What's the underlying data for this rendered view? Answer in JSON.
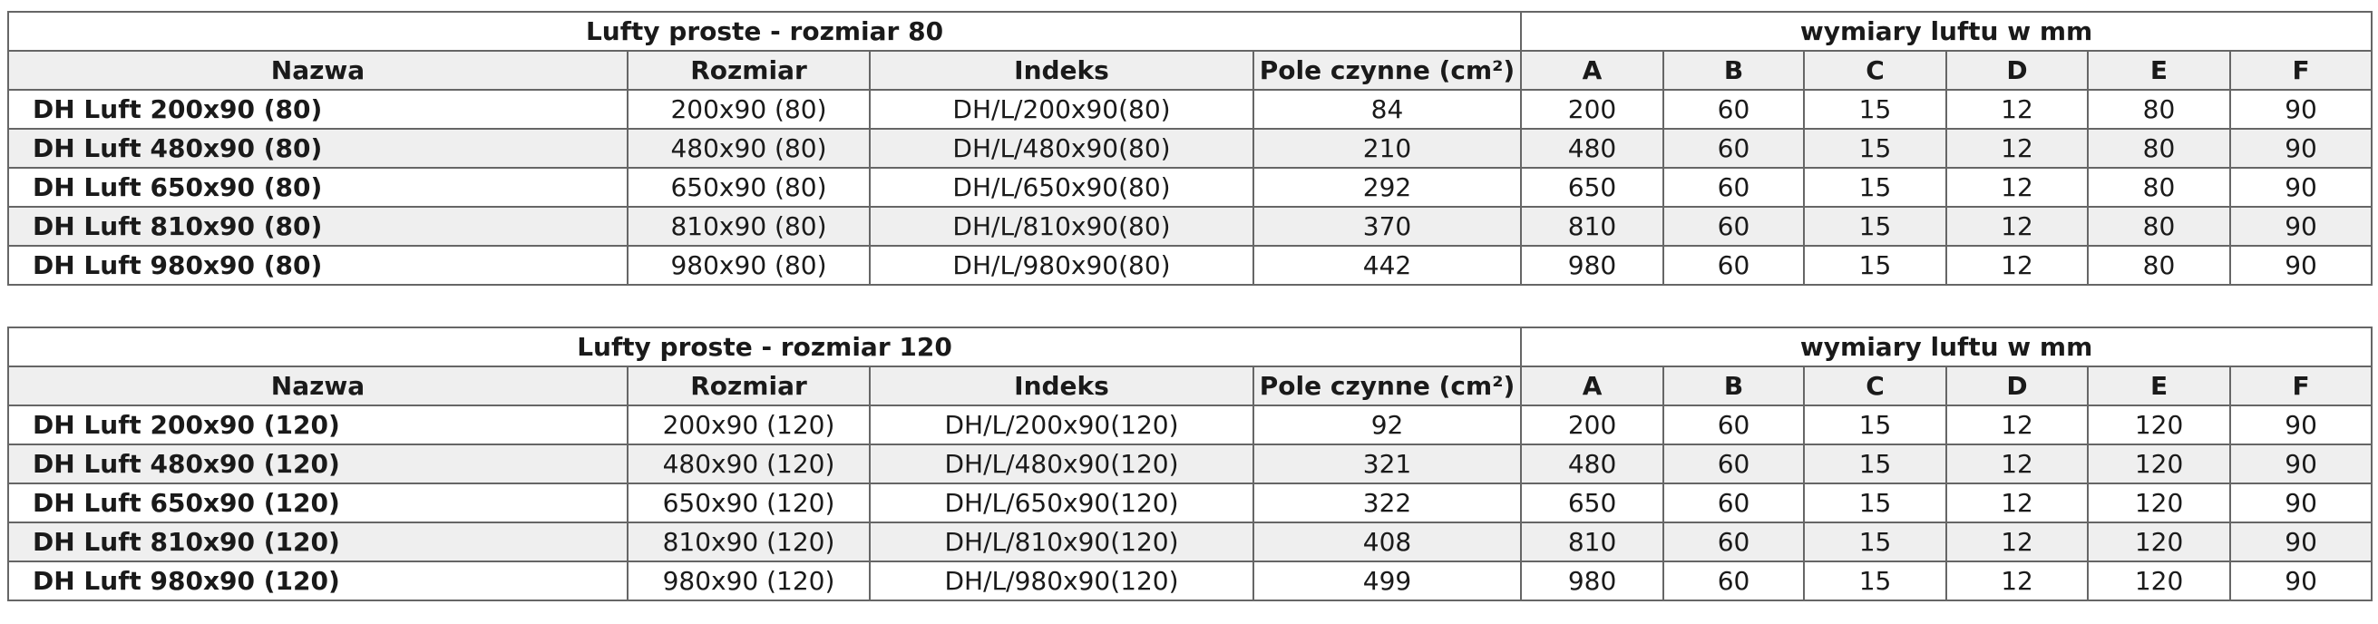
{
  "tables": [
    {
      "title": "Lufty proste - rozmiar 80",
      "dims_title": "wymiary luftu w mm",
      "headers": [
        "Nazwa",
        "Rozmiar",
        "Indeks",
        "Pole czynne (cm²)",
        "A",
        "B",
        "C",
        "D",
        "E",
        "F"
      ],
      "rows": [
        [
          "DH Luft 200x90 (80)",
          "200x90 (80)",
          "DH/L/200x90(80)",
          84,
          200,
          60,
          15,
          12,
          80,
          90
        ],
        [
          "DH Luft 480x90 (80)",
          "480x90 (80)",
          "DH/L/480x90(80)",
          210,
          480,
          60,
          15,
          12,
          80,
          90
        ],
        [
          "DH Luft 650x90 (80)",
          "650x90 (80)",
          "DH/L/650x90(80)",
          292,
          650,
          60,
          15,
          12,
          80,
          90
        ],
        [
          "DH Luft 810x90 (80)",
          "810x90 (80)",
          "DH/L/810x90(80)",
          370,
          810,
          60,
          15,
          12,
          80,
          90
        ],
        [
          "DH Luft 980x90 (80)",
          "980x90 (80)",
          "DH/L/980x90(80)",
          442,
          980,
          60,
          15,
          12,
          80,
          90
        ]
      ]
    },
    {
      "title": "Lufty proste - rozmiar 120",
      "dims_title": "wymiary luftu w mm",
      "headers": [
        "Nazwa",
        "Rozmiar",
        "Indeks",
        "Pole czynne (cm²)",
        "A",
        "B",
        "C",
        "D",
        "E",
        "F"
      ],
      "rows": [
        [
          "DH Luft 200x90 (120)",
          "200x90 (120)",
          "DH/L/200x90(120)",
          92,
          200,
          60,
          15,
          12,
          120,
          90
        ],
        [
          "DH Luft 480x90 (120)",
          "480x90 (120)",
          "DH/L/480x90(120)",
          321,
          480,
          60,
          15,
          12,
          120,
          90
        ],
        [
          "DH Luft 650x90 (120)",
          "650x90 (120)",
          "DH/L/650x90(120)",
          322,
          650,
          60,
          15,
          12,
          120,
          90
        ],
        [
          "DH Luft 810x90 (120)",
          "810x90 (120)",
          "DH/L/810x90(120)",
          408,
          810,
          60,
          15,
          12,
          120,
          90
        ],
        [
          "DH Luft 980x90 (120)",
          "980x90 (120)",
          "DH/L/980x90(120)",
          499,
          980,
          60,
          15,
          12,
          120,
          90
        ]
      ]
    }
  ]
}
